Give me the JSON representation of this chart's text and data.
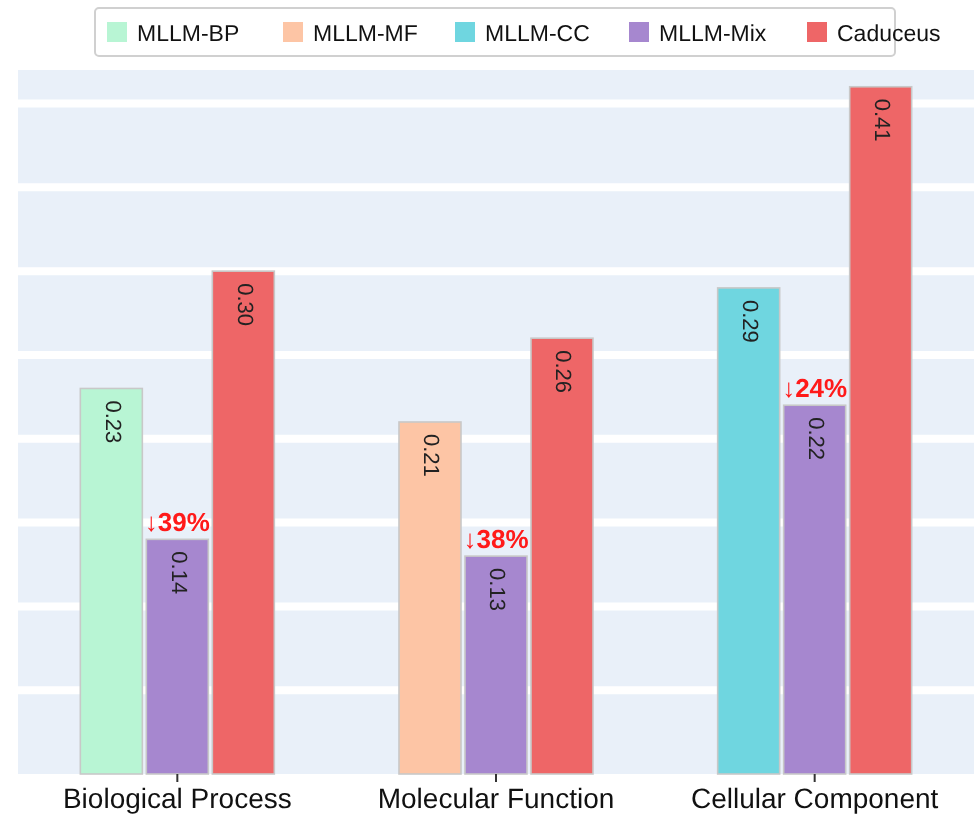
{
  "chart_data": {
    "type": "bar",
    "categories": [
      "Biological Process",
      "Molecular Function",
      "Cellular Component"
    ],
    "series": [
      {
        "name": "MLLM-BP",
        "color": "#b8f5d4",
        "values": [
          0.23,
          null,
          null
        ],
        "value_labels": [
          "0.23",
          null,
          null
        ]
      },
      {
        "name": "MLLM-MF",
        "color": "#fdc5a5",
        "values": [
          null,
          0.21,
          null
        ],
        "value_labels": [
          null,
          "0.21",
          null
        ]
      },
      {
        "name": "MLLM-CC",
        "color": "#6fd6e0",
        "values": [
          null,
          null,
          0.29
        ],
        "value_labels": [
          null,
          null,
          "0.29"
        ]
      },
      {
        "name": "MLLM-Mix",
        "color": "#a687cf",
        "values": [
          0.14,
          0.13,
          0.22
        ],
        "value_labels": [
          "0.14",
          "0.13",
          "0.22"
        ]
      },
      {
        "name": "Caduceus",
        "color": "#ee6667",
        "values": [
          0.3,
          0.26,
          0.41
        ],
        "value_labels": [
          "0.30",
          "0.26",
          "0.41"
        ]
      }
    ],
    "ylim": [
      0,
      0.42
    ],
    "yticks": [
      {
        "value": 0.05,
        "label": null
      },
      {
        "value": 0.1,
        "label": null
      },
      {
        "value": 0.15,
        "label": null
      },
      {
        "value": 0.2,
        "label": null
      },
      {
        "value": 0.25,
        "label": null
      },
      {
        "value": 0.3,
        "label": null
      },
      {
        "value": 0.35,
        "label": null
      },
      {
        "value": 0.4,
        "label": null
      }
    ],
    "tick_labels": "x",
    "grid": "y",
    "legend": "top",
    "annotations": [
      {
        "text": "↓39%",
        "x": "Biological Process",
        "y": 0.14
      },
      {
        "text": "↓38%",
        "x": "Molecular Function",
        "y": 0.13
      },
      {
        "text": "↓24%",
        "x": "Cellular Component",
        "y": 0.22
      }
    ]
  }
}
